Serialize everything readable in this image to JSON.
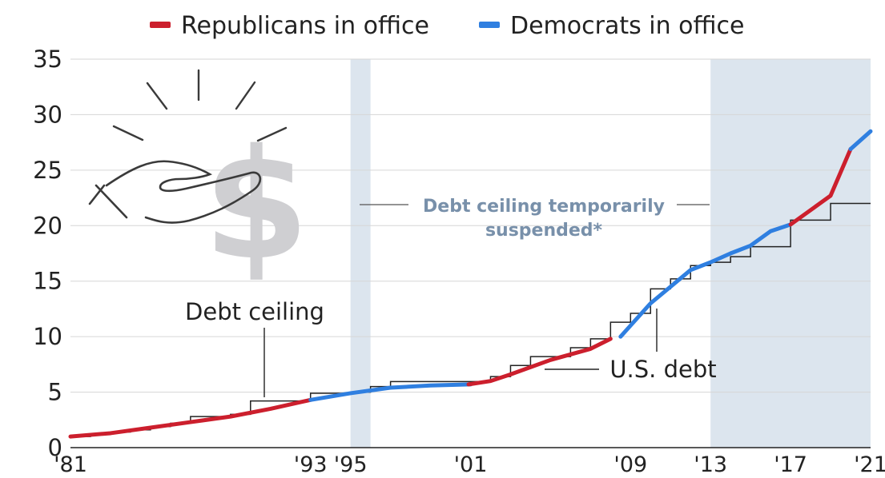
{
  "chart_data": {
    "type": "line",
    "title": "",
    "xlabel": "",
    "ylabel": "",
    "xlim": [
      1981,
      2021
    ],
    "ylim": [
      0,
      35
    ],
    "yticks": [
      0,
      5,
      10,
      15,
      20,
      25,
      30,
      35
    ],
    "xticks": [
      {
        "value": 1981,
        "label": "'81"
      },
      {
        "value": 1993,
        "label": "'93"
      },
      {
        "value": 1995,
        "label": "'95"
      },
      {
        "value": 2001,
        "label": "'01"
      },
      {
        "value": 2009,
        "label": "'09"
      },
      {
        "value": 2013,
        "label": "'13"
      },
      {
        "value": 2017,
        "label": "'17"
      },
      {
        "value": 2021,
        "label": "'21"
      }
    ],
    "grid": true,
    "legend": {
      "placement": "top-center",
      "entries": [
        {
          "label": "Republicans in office",
          "color": "#cc1f2d"
        },
        {
          "label": "Democrats in office",
          "color": "#2f7fe0"
        }
      ]
    },
    "shaded_periods": [
      {
        "start": 1995.0,
        "end": 1996.0
      },
      {
        "start": 2013.0,
        "end": 2021.0
      }
    ],
    "annotations": {
      "suspended_line1": "Debt ceiling temporarily",
      "suspended_line2": "suspended*",
      "debt_ceiling_label": "Debt ceiling",
      "us_debt_label": "U.S. debt"
    },
    "series": [
      {
        "name": "U.S. debt",
        "segments": [
          {
            "party": "Republican",
            "color": "#cc1f2d",
            "points": [
              [
                1981,
                1.0
              ],
              [
                1983,
                1.3
              ],
              [
                1985,
                1.8
              ],
              [
                1987,
                2.3
              ],
              [
                1989,
                2.8
              ],
              [
                1991,
                3.5
              ],
              [
                1993,
                4.3
              ]
            ]
          },
          {
            "party": "Democrat",
            "color": "#2f7fe0",
            "points": [
              [
                1993,
                4.3
              ],
              [
                1995,
                4.9
              ],
              [
                1997,
                5.4
              ],
              [
                1999,
                5.6
              ],
              [
                2001,
                5.7
              ]
            ]
          },
          {
            "party": "Republican",
            "color": "#cc1f2d",
            "points": [
              [
                2000.9,
                5.7
              ],
              [
                2002,
                6.0
              ],
              [
                2003,
                6.6
              ],
              [
                2005,
                7.9
              ],
              [
                2007,
                8.9
              ],
              [
                2008,
                9.8
              ]
            ]
          },
          {
            "party": "Democrat",
            "color": "#2f7fe0",
            "points": [
              [
                2008.5,
                10.0
              ],
              [
                2009,
                11.0
              ],
              [
                2010,
                13.0
              ],
              [
                2011,
                14.5
              ],
              [
                2012,
                16.0
              ],
              [
                2013,
                16.7
              ],
              [
                2014,
                17.5
              ],
              [
                2015,
                18.2
              ],
              [
                2016,
                19.5
              ],
              [
                2017,
                20.1
              ]
            ]
          },
          {
            "party": "Republican",
            "color": "#cc1f2d",
            "points": [
              [
                2017,
                20.1
              ],
              [
                2019,
                22.7
              ],
              [
                2020,
                26.9
              ]
            ]
          },
          {
            "party": "Democrat",
            "color": "#2f7fe0",
            "points": [
              [
                2020,
                26.9
              ],
              [
                2021,
                28.5
              ]
            ]
          }
        ]
      },
      {
        "name": "Debt ceiling",
        "color": "#222222",
        "steps": [
          [
            1981,
            1.0
          ],
          [
            1982,
            1.2
          ],
          [
            1983,
            1.4
          ],
          [
            1984,
            1.6
          ],
          [
            1985,
            1.9
          ],
          [
            1986,
            2.2
          ],
          [
            1987,
            2.8
          ],
          [
            1989,
            3.0
          ],
          [
            1990,
            4.2
          ],
          [
            1993,
            4.9
          ],
          [
            1995,
            5.0
          ],
          [
            1996,
            5.5
          ],
          [
            1997,
            5.95
          ],
          [
            2002,
            6.4
          ],
          [
            2003,
            7.4
          ],
          [
            2004,
            8.2
          ],
          [
            2006,
            9.0
          ],
          [
            2007,
            9.8
          ],
          [
            2008,
            11.3
          ],
          [
            2009,
            12.1
          ],
          [
            2010,
            14.3
          ],
          [
            2011,
            15.2
          ],
          [
            2012,
            16.4
          ],
          [
            2013,
            16.7
          ],
          [
            2014,
            17.2
          ],
          [
            2015,
            18.1
          ],
          [
            2017,
            20.5
          ],
          [
            2019,
            22.0
          ],
          [
            2021,
            22.0
          ]
        ]
      }
    ]
  }
}
